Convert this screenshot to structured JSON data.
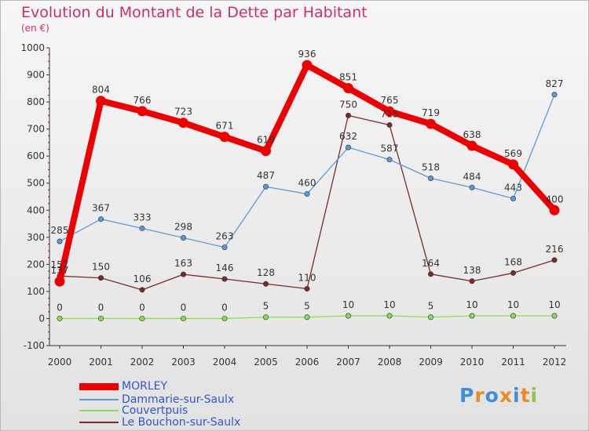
{
  "header": {
    "title": "Evolution du Montant de la Dette par Habitant",
    "subtitle": "(en €)"
  },
  "branding": {
    "logo": "Proxiti"
  },
  "colors": {
    "title": "#c9306b",
    "legend_text": "#3355cc",
    "axis": "#333333",
    "tick_red": "#cc0000"
  },
  "chart_data": {
    "type": "line",
    "title": "Evolution du Montant de la Dette par Habitant",
    "subtitle": "(en €)",
    "x": [
      "2000",
      "2001",
      "2002",
      "2003",
      "2004",
      "2005",
      "2006",
      "2007",
      "2008",
      "2009",
      "2010",
      "2011",
      "2012"
    ],
    "ylim": [
      -100,
      1000
    ],
    "yticks": [
      -100,
      0,
      100,
      200,
      300,
      400,
      500,
      600,
      700,
      800,
      900,
      1000
    ],
    "grid": false,
    "legend_position": "bottom-left",
    "series": [
      {
        "name": "MORLEY",
        "color": "#ee0000",
        "values": [
          137,
          804,
          766,
          723,
          671,
          619,
          936,
          851,
          765,
          719,
          638,
          569,
          400
        ]
      },
      {
        "name": "Dammarie-sur-Saulx",
        "color": "#5b9bd5",
        "values": [
          285,
          367,
          333,
          298,
          263,
          487,
          460,
          632,
          587,
          518,
          484,
          443,
          827
        ]
      },
      {
        "name": "Couvertpuis",
        "color": "#88dd55",
        "values": [
          0,
          0,
          0,
          0,
          0,
          5,
          5,
          10,
          10,
          5,
          10,
          10,
          10
        ]
      },
      {
        "name": "Le Bouchon-sur-Saulx",
        "color": "#7a2a2a",
        "values": [
          157,
          150,
          106,
          163,
          146,
          128,
          110,
          750,
          715,
          164,
          138,
          168,
          216
        ]
      }
    ]
  }
}
